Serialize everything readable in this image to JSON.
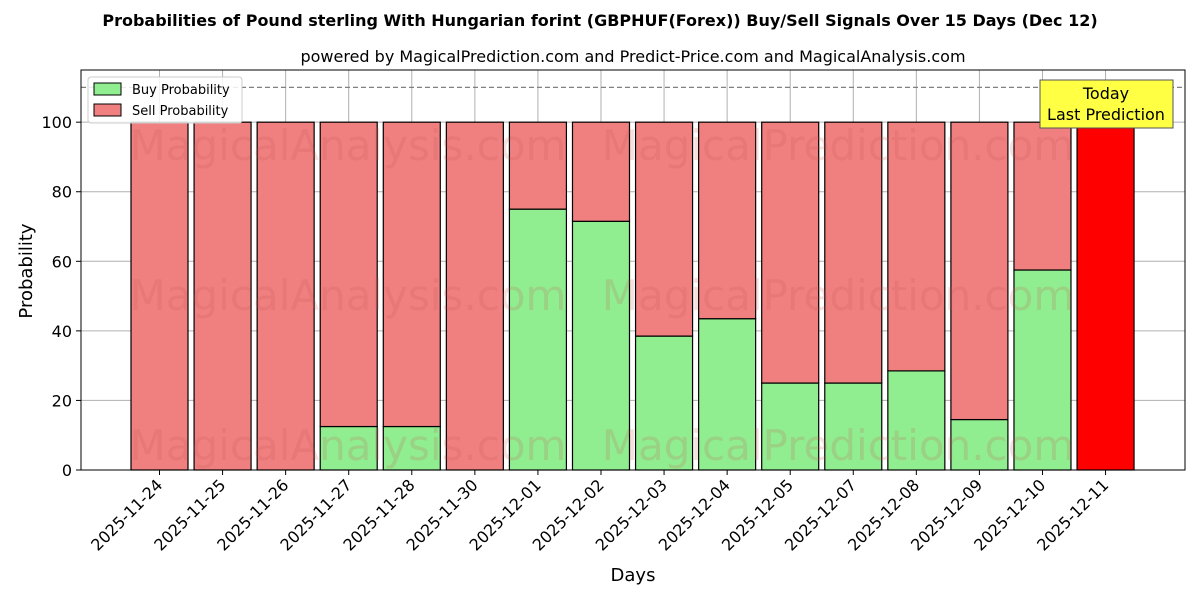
{
  "chart_data": {
    "type": "bar",
    "stacked": true,
    "title": "Probabilities of Pound sterling With Hungarian forint (GBPHUF(Forex)) Buy/Sell Signals Over 15 Days (Dec 12)",
    "subtitle": "powered by MagicalPrediction.com and Predict-Price.com and MagicalAnalysis.com",
    "xlabel": "Days",
    "ylabel": "Probability",
    "ylim": [
      0,
      115
    ],
    "yticks": [
      0,
      20,
      40,
      60,
      80,
      100
    ],
    "grid": true,
    "legend_placement": "top-left",
    "categories": [
      "2025-11-24",
      "2025-11-25",
      "2025-11-26",
      "2025-11-27",
      "2025-11-28",
      "2025-11-30",
      "2025-12-01",
      "2025-12-02",
      "2025-12-03",
      "2025-12-04",
      "2025-12-05",
      "2025-12-07",
      "2025-12-08",
      "2025-12-09",
      "2025-12-10",
      "2025-12-11"
    ],
    "series": [
      {
        "name": "Buy Probability",
        "color": "#90ee90",
        "values": [
          0,
          0,
          0,
          12.5,
          12.5,
          0,
          75,
          71.5,
          38.5,
          43.5,
          25,
          25,
          28.5,
          14.5,
          57.5,
          0
        ]
      },
      {
        "name": "Sell Probability",
        "color": "#f08080",
        "values": [
          100,
          100,
          100,
          87.5,
          87.5,
          100,
          25,
          28.5,
          61.5,
          56.5,
          75,
          75,
          71.5,
          85.5,
          42.5,
          100
        ]
      }
    ],
    "highlight": {
      "category": "2025-12-11",
      "color": "#ff0000"
    },
    "reference_line": {
      "y": 110,
      "style": "dashed",
      "color": "#808080"
    },
    "annotation": {
      "line1": "Today",
      "line2": "Last Prediction",
      "color": "#ffff44"
    },
    "watermarks": [
      "MagicalAnalysis.com",
      "MagicalPrediction.com"
    ]
  }
}
